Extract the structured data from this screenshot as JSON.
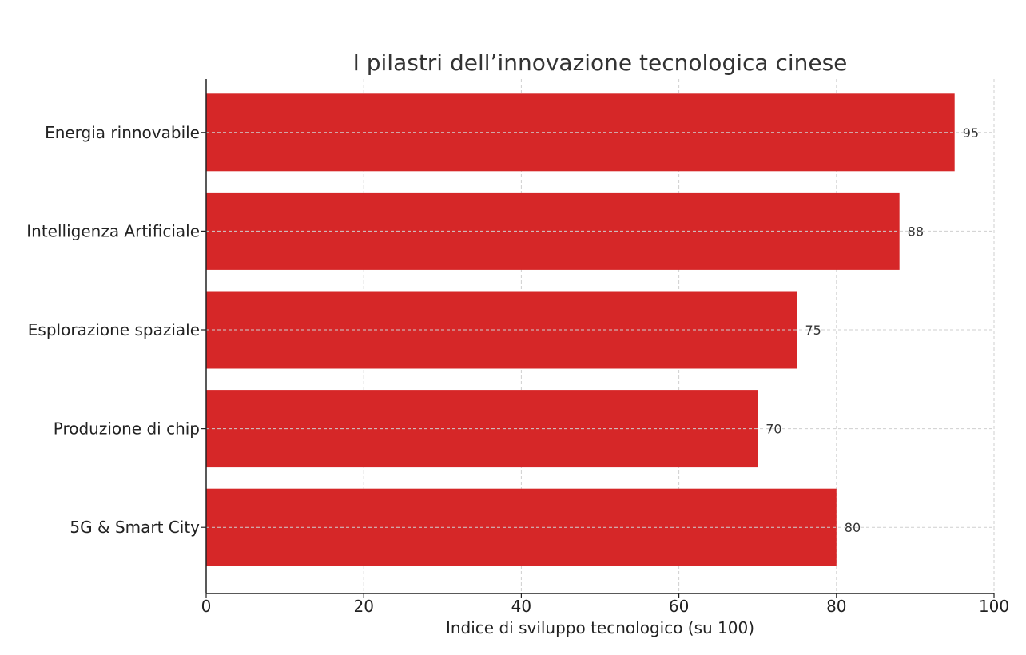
{
  "chart_data": {
    "type": "bar",
    "orientation": "horizontal",
    "title": "I pilastri dell’innovazione tecnologica cinese",
    "xlabel": "Indice di sviluppo tecnologico (su 100)",
    "ylabel": "",
    "categories": [
      "Energia rinnovabile",
      "Intelligenza Artificiale",
      "Esplorazione spaziale",
      "Produzione di chip",
      "5G & Smart City"
    ],
    "values": [
      95,
      88,
      75,
      70,
      80
    ],
    "value_labels": [
      "95",
      "88",
      "75",
      "70",
      "80"
    ],
    "xlim": [
      0,
      100
    ],
    "xticks": [
      "0",
      "20",
      "40",
      "60",
      "80",
      "100"
    ],
    "grid": true,
    "legend": "none",
    "colors": {
      "bar": "#d62728"
    }
  }
}
